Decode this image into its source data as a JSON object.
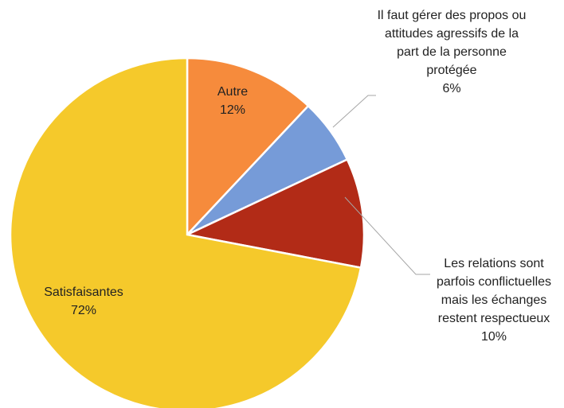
{
  "chart_data": {
    "type": "pie",
    "categories": [
      "Autre",
      "Il faut gérer des propos ou attitudes agressifs de la part de la personne protégée",
      "Les relations sont parfois conflictuelles mais les échanges restent respectueux",
      "Satisfaisantes"
    ],
    "values": [
      12,
      6,
      10,
      72
    ],
    "value_labels": [
      "12%",
      "6%",
      "10%",
      "72%"
    ],
    "colors": [
      "#f68b3c",
      "#769bd8",
      "#b22b17",
      "#f5c92b"
    ]
  }
}
